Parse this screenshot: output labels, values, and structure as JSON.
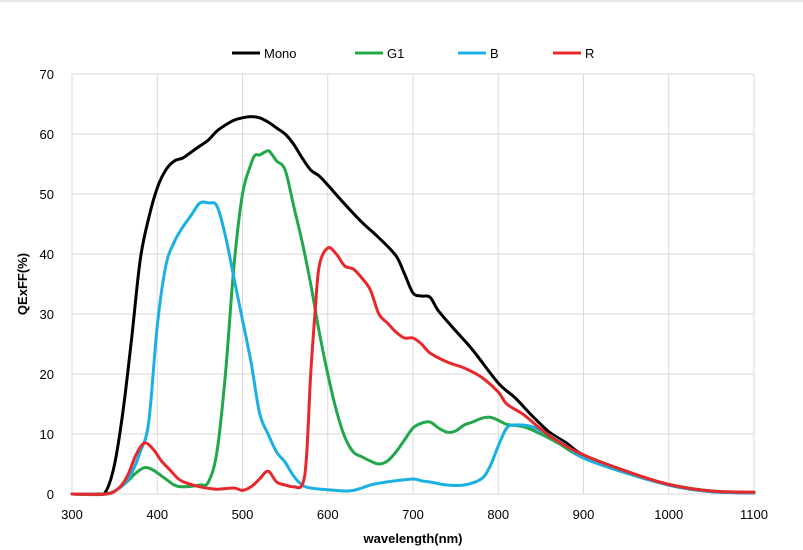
{
  "chart_data": {
    "type": "line",
    "xlabel": "wavelength(nm)",
    "ylabel": "QExFF(%)",
    "xlim": [
      300,
      1100
    ],
    "ylim": [
      0,
      70
    ],
    "x_ticks": [
      300,
      400,
      500,
      600,
      700,
      800,
      900,
      1000,
      1100
    ],
    "y_ticks": [
      0,
      10,
      20,
      30,
      40,
      50,
      60,
      70
    ],
    "grid": "major vertical and horizontal",
    "legend_position": "top",
    "series": [
      {
        "name": "Mono",
        "color": "#000000",
        "points": [
          [
            300,
            0
          ],
          [
            330,
            0
          ],
          [
            340,
            0.5
          ],
          [
            350,
            5
          ],
          [
            360,
            14
          ],
          [
            370,
            26
          ],
          [
            380,
            39
          ],
          [
            390,
            46
          ],
          [
            400,
            51
          ],
          [
            410,
            54
          ],
          [
            420,
            55.5
          ],
          [
            430,
            56
          ],
          [
            440,
            57
          ],
          [
            450,
            58
          ],
          [
            460,
            59
          ],
          [
            470,
            60.5
          ],
          [
            480,
            61.5
          ],
          [
            490,
            62.3
          ],
          [
            500,
            62.7
          ],
          [
            510,
            62.9
          ],
          [
            520,
            62.7
          ],
          [
            530,
            62
          ],
          [
            540,
            61
          ],
          [
            550,
            60
          ],
          [
            560,
            58.3
          ],
          [
            570,
            56
          ],
          [
            580,
            54
          ],
          [
            590,
            53
          ],
          [
            600,
            51.5
          ],
          [
            620,
            48.3
          ],
          [
            640,
            45.3
          ],
          [
            660,
            42.7
          ],
          [
            680,
            39.7
          ],
          [
            690,
            36.7
          ],
          [
            700,
            33.5
          ],
          [
            710,
            33
          ],
          [
            720,
            32.8
          ],
          [
            730,
            30.5
          ],
          [
            750,
            27.2
          ],
          [
            770,
            24
          ],
          [
            800,
            18.5
          ],
          [
            820,
            16
          ],
          [
            840,
            13
          ],
          [
            860,
            10.3
          ],
          [
            880,
            8.5
          ],
          [
            900,
            6.5
          ],
          [
            950,
            3.8
          ],
          [
            1000,
            1.5
          ],
          [
            1050,
            0.4
          ],
          [
            1100,
            0.2
          ]
        ]
      },
      {
        "name": "G1",
        "color": "#22a84a",
        "points": [
          [
            300,
            0
          ],
          [
            340,
            0
          ],
          [
            360,
            1.5
          ],
          [
            375,
            3.5
          ],
          [
            385,
            4.4
          ],
          [
            395,
            4
          ],
          [
            410,
            2.5
          ],
          [
            420,
            1.5
          ],
          [
            430,
            1.2
          ],
          [
            450,
            1.5
          ],
          [
            460,
            2
          ],
          [
            470,
            7
          ],
          [
            480,
            20
          ],
          [
            490,
            38
          ],
          [
            500,
            50
          ],
          [
            510,
            55
          ],
          [
            515,
            56.5
          ],
          [
            520,
            56.5
          ],
          [
            530,
            57.2
          ],
          [
            535,
            56.5
          ],
          [
            540,
            55.5
          ],
          [
            550,
            54
          ],
          [
            560,
            48
          ],
          [
            570,
            42
          ],
          [
            580,
            35
          ],
          [
            590,
            27
          ],
          [
            600,
            20
          ],
          [
            610,
            14
          ],
          [
            620,
            9.5
          ],
          [
            630,
            7
          ],
          [
            640,
            6.2
          ],
          [
            650,
            5.5
          ],
          [
            660,
            5
          ],
          [
            670,
            5.5
          ],
          [
            680,
            7
          ],
          [
            690,
            9
          ],
          [
            700,
            11
          ],
          [
            710,
            11.8
          ],
          [
            720,
            12
          ],
          [
            730,
            11
          ],
          [
            740,
            10.3
          ],
          [
            750,
            10.5
          ],
          [
            760,
            11.5
          ],
          [
            770,
            12
          ],
          [
            780,
            12.6
          ],
          [
            790,
            12.8
          ],
          [
            800,
            12.3
          ],
          [
            810,
            11.6
          ],
          [
            830,
            11.2
          ],
          [
            850,
            10
          ],
          [
            870,
            8.5
          ],
          [
            900,
            6
          ],
          [
            950,
            3.5
          ],
          [
            1000,
            1.6
          ],
          [
            1050,
            0.5
          ],
          [
            1100,
            0.3
          ]
        ]
      },
      {
        "name": "B",
        "color": "#1bb0e2",
        "points": [
          [
            300,
            0
          ],
          [
            340,
            0
          ],
          [
            350,
            0.5
          ],
          [
            360,
            1.5
          ],
          [
            370,
            3.5
          ],
          [
            380,
            7
          ],
          [
            390,
            12
          ],
          [
            400,
            28
          ],
          [
            410,
            38
          ],
          [
            420,
            42
          ],
          [
            430,
            44.5
          ],
          [
            440,
            46.5
          ],
          [
            450,
            48.5
          ],
          [
            460,
            48.5
          ],
          [
            470,
            48
          ],
          [
            480,
            43
          ],
          [
            490,
            36
          ],
          [
            500,
            29
          ],
          [
            510,
            22
          ],
          [
            520,
            13.5
          ],
          [
            530,
            10
          ],
          [
            540,
            7
          ],
          [
            550,
            5.3
          ],
          [
            560,
            3
          ],
          [
            570,
            1.5
          ],
          [
            580,
            1
          ],
          [
            600,
            0.7
          ],
          [
            620,
            0.5
          ],
          [
            630,
            0.6
          ],
          [
            640,
            1
          ],
          [
            650,
            1.5
          ],
          [
            660,
            1.8
          ],
          [
            680,
            2.2
          ],
          [
            700,
            2.5
          ],
          [
            710,
            2.2
          ],
          [
            720,
            2
          ],
          [
            740,
            1.5
          ],
          [
            760,
            1.5
          ],
          [
            780,
            2.5
          ],
          [
            790,
            4.5
          ],
          [
            800,
            8
          ],
          [
            810,
            11
          ],
          [
            820,
            11.5
          ],
          [
            840,
            11.2
          ],
          [
            860,
            9.8
          ],
          [
            880,
            8
          ],
          [
            900,
            6
          ],
          [
            950,
            3.5
          ],
          [
            1000,
            1.5
          ],
          [
            1050,
            0.4
          ],
          [
            1100,
            0.2
          ]
        ]
      },
      {
        "name": "R",
        "color": "#e8282b",
        "points": [
          [
            300,
            0
          ],
          [
            340,
            0
          ],
          [
            355,
            1
          ],
          [
            365,
            3
          ],
          [
            375,
            6.5
          ],
          [
            385,
            8.5
          ],
          [
            395,
            7.5
          ],
          [
            405,
            5.5
          ],
          [
            415,
            4
          ],
          [
            425,
            2.5
          ],
          [
            435,
            1.8
          ],
          [
            450,
            1.2
          ],
          [
            470,
            0.8
          ],
          [
            490,
            1
          ],
          [
            500,
            0.6
          ],
          [
            510,
            1.2
          ],
          [
            520,
            2.5
          ],
          [
            530,
            3.8
          ],
          [
            540,
            2
          ],
          [
            550,
            1.5
          ],
          [
            560,
            1.2
          ],
          [
            570,
            1.5
          ],
          [
            575,
            6
          ],
          [
            580,
            20
          ],
          [
            585,
            30
          ],
          [
            590,
            38
          ],
          [
            600,
            41
          ],
          [
            610,
            40
          ],
          [
            620,
            38
          ],
          [
            630,
            37.5
          ],
          [
            640,
            36
          ],
          [
            650,
            34
          ],
          [
            660,
            30
          ],
          [
            670,
            28.5
          ],
          [
            680,
            27
          ],
          [
            690,
            26
          ],
          [
            700,
            26
          ],
          [
            710,
            25
          ],
          [
            720,
            23.5
          ],
          [
            740,
            22
          ],
          [
            760,
            21
          ],
          [
            780,
            19.5
          ],
          [
            800,
            17
          ],
          [
            810,
            15
          ],
          [
            830,
            13.2
          ],
          [
            850,
            10.8
          ],
          [
            870,
            8.8
          ],
          [
            900,
            6.5
          ],
          [
            950,
            3.8
          ],
          [
            1000,
            1.6
          ],
          [
            1050,
            0.5
          ],
          [
            1100,
            0.3
          ]
        ]
      }
    ]
  }
}
